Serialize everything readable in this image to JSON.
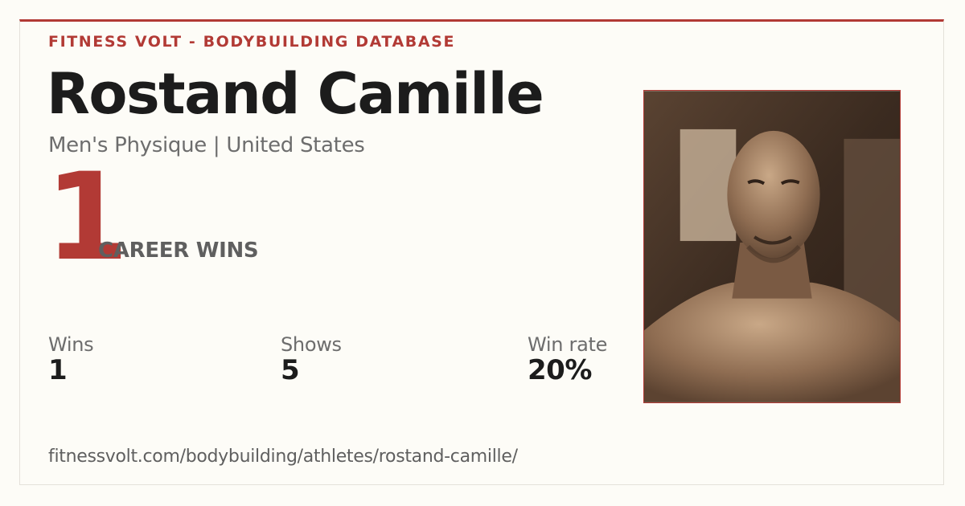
{
  "header": {
    "brand": "FITNESS VOLT - BODYBUILDING DATABASE",
    "name": "Rostand Camille",
    "subtitle": "Men's Physique | United States"
  },
  "career_wins": {
    "value": "1",
    "label": "CAREER WINS"
  },
  "stats": [
    {
      "label": "Wins",
      "value": "1"
    },
    {
      "label": "Shows",
      "value": "5"
    },
    {
      "label": "Win rate",
      "value": "20%"
    }
  ],
  "footer": {
    "url": "fitnessvolt.com/bodybuilding/athletes/rostand-camille/"
  }
}
